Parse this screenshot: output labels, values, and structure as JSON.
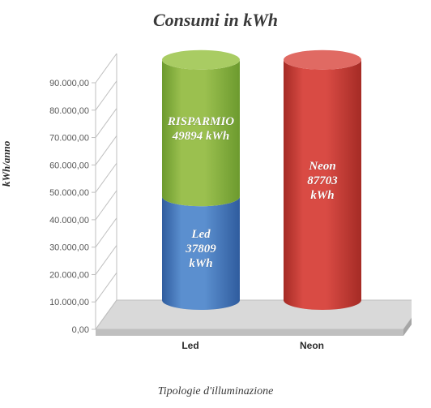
{
  "chart": {
    "type": "stacked-3d-cylinder-bar",
    "title": "Consumi in kWh",
    "title_fontsize": 22,
    "ylabel": "kWh/anno",
    "xlabel": "Tipologie d'illuminazione",
    "background_color": "#ffffff",
    "axis_color": "#bfbfbf",
    "tick_label_color": "#595959",
    "ylim": [
      0,
      90000
    ],
    "ytick_step": 10000,
    "yticks": [
      "0,00",
      "10.000,00",
      "20.000,00",
      "30.000,00",
      "40.000,00",
      "50.000,00",
      "60.000,00",
      "70.000,00",
      "80.000,00",
      "90.000,00"
    ],
    "floor_color_front": "#d9d9d9",
    "floor_color_back": "#c8c8c8",
    "floor_depth": 36,
    "cylinder_radius_x": 48,
    "cylinder_radius_y": 12,
    "categories": [
      {
        "name": "Led",
        "label": "Led",
        "x_center": 200,
        "segments": [
          {
            "name": "led",
            "value": 37809,
            "label_line1": "Led",
            "label_line2": "37809",
            "label_line3": "kWh",
            "fill_left": "#5b8fcf",
            "fill_right": "#2f5c9e",
            "top_fill": "#7aa7db"
          },
          {
            "name": "risparmio",
            "value": 49894,
            "label_line1": "RISPARMIO",
            "label_line2": "49894 kWh",
            "label_line3": "",
            "fill_left": "#9bc04f",
            "fill_right": "#6c9a2e",
            "top_fill": "#a9cc63"
          }
        ]
      },
      {
        "name": "Neon",
        "label": "Neon",
        "x_center": 350,
        "segments": [
          {
            "name": "neon",
            "value": 87703,
            "label_line1": "Neon",
            "label_line2": "87703",
            "label_line3": "kWh",
            "fill_left": "#d94b44",
            "fill_right": "#a52b25",
            "top_fill": "#e06a63"
          }
        ]
      }
    ],
    "segment_label_fontsize": 15
  }
}
